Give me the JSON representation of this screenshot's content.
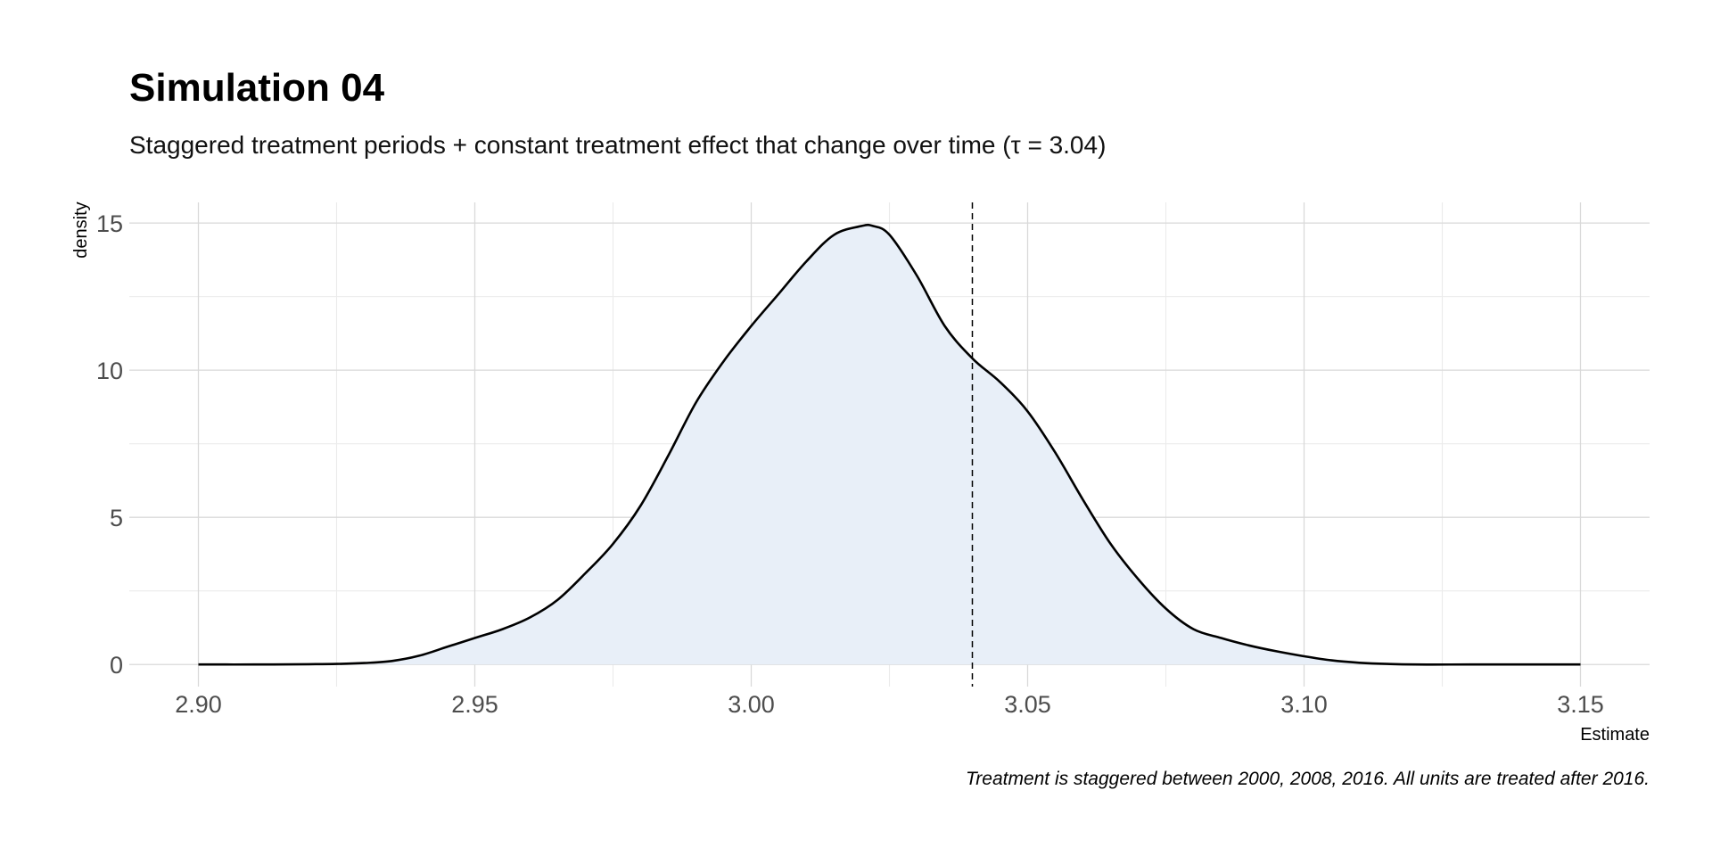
{
  "chart_data": {
    "type": "area",
    "title": "Simulation 04",
    "subtitle": "Staggered treatment periods + constant treatment effect that change over time (τ = 3.04)",
    "xlabel": "Estimate",
    "ylabel": "density",
    "caption": "Treatment is staggered between 2000, 2008, 2016. All units are treated after 2016.",
    "xlim": [
      2.8875,
      3.1625
    ],
    "ylim": [
      -0.75,
      15.7
    ],
    "x_ticks": [
      "2.90",
      "2.95",
      "3.00",
      "3.05",
      "3.10",
      "3.15"
    ],
    "x_tick_values": [
      2.9,
      2.95,
      3.0,
      3.05,
      3.1,
      3.15
    ],
    "y_ticks": [
      "0",
      "5",
      "10",
      "15"
    ],
    "y_tick_values": [
      0,
      5,
      10,
      15
    ],
    "grid": true,
    "reference_line": {
      "x": 3.04,
      "style": "dashed",
      "color": "#000000"
    },
    "fill_color": "#e8eff8",
    "line_color": "#000000",
    "x": [
      2.9,
      2.91,
      2.92,
      2.925,
      2.93,
      2.935,
      2.94,
      2.945,
      2.95,
      2.955,
      2.96,
      2.965,
      2.97,
      2.975,
      2.98,
      2.985,
      2.99,
      2.995,
      3.0,
      3.005,
      3.01,
      3.015,
      3.02,
      3.022,
      3.025,
      3.03,
      3.035,
      3.04,
      3.045,
      3.05,
      3.055,
      3.06,
      3.065,
      3.07,
      3.075,
      3.08,
      3.085,
      3.09,
      3.095,
      3.1,
      3.105,
      3.11,
      3.115,
      3.12,
      3.13,
      3.14,
      3.15
    ],
    "y": [
      0.0,
      0.0,
      0.01,
      0.02,
      0.05,
      0.12,
      0.3,
      0.6,
      0.9,
      1.2,
      1.6,
      2.2,
      3.1,
      4.1,
      5.4,
      7.1,
      8.9,
      10.3,
      11.5,
      12.6,
      13.7,
      14.6,
      14.9,
      14.9,
      14.6,
      13.2,
      11.5,
      10.4,
      9.6,
      8.6,
      7.2,
      5.6,
      4.1,
      2.9,
      1.9,
      1.2,
      0.9,
      0.65,
      0.45,
      0.28,
      0.14,
      0.06,
      0.02,
      0.0,
      0.0,
      0.0,
      0.0
    ]
  }
}
